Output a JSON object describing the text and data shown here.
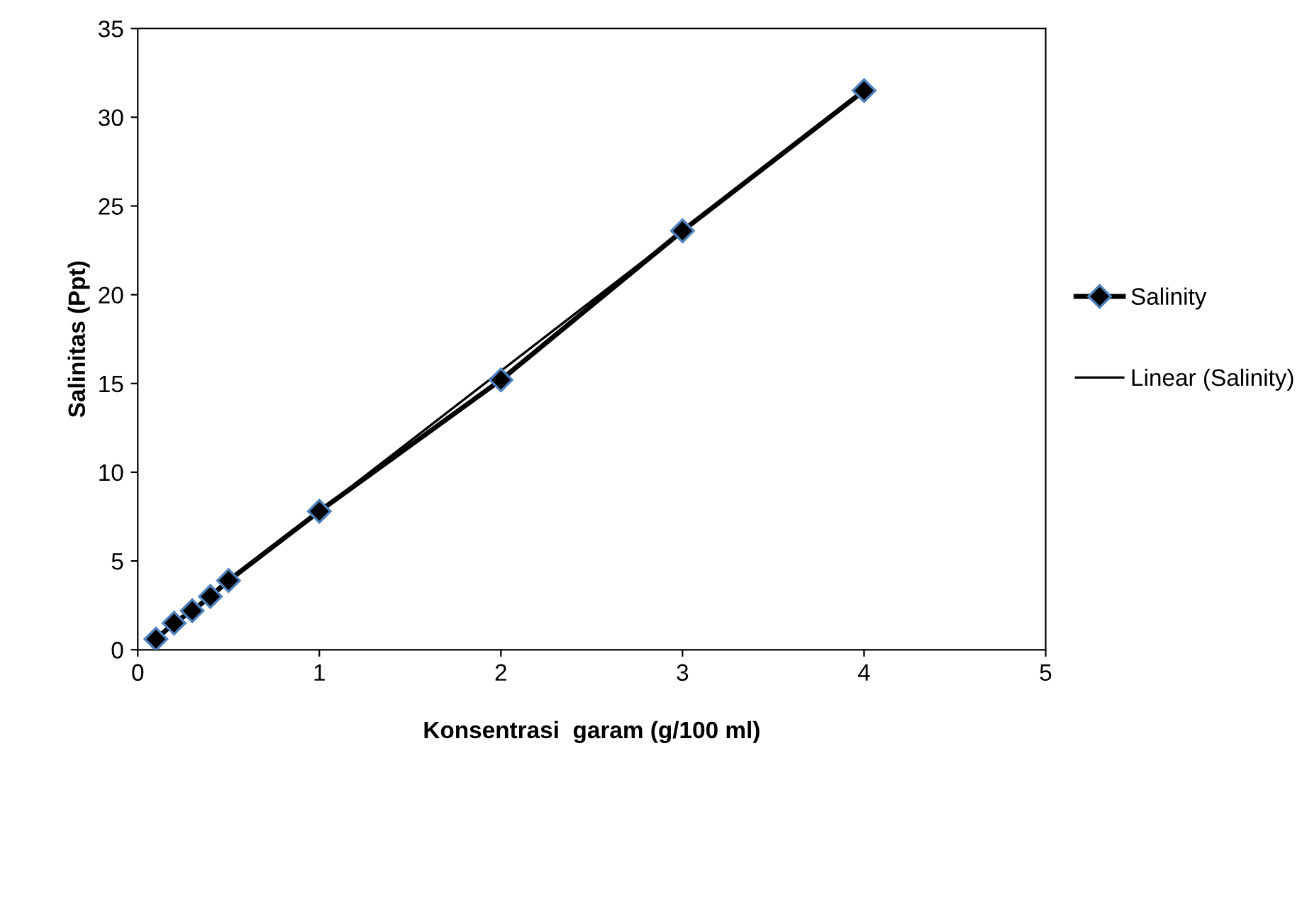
{
  "chart_data": {
    "type": "line",
    "xlabel": "Konsentrasi  garam (g/100 ml)",
    "ylabel": "Salinitas (Ppt)",
    "xlim": [
      0,
      5
    ],
    "xticks": [
      0,
      1,
      2,
      3,
      4,
      5
    ],
    "ylim": [
      0,
      35
    ],
    "yticks": [
      0,
      5,
      10,
      15,
      20,
      25,
      30,
      35
    ],
    "grid": false,
    "legend": "right",
    "marker": "diamond",
    "line_style": "solid",
    "series": [
      {
        "name": "Salinity",
        "color": "#000000",
        "x": [
          0.1,
          0.2,
          0.3,
          0.4,
          0.5,
          1,
          2,
          3,
          4
        ],
        "values": [
          0.6,
          1.5,
          2.2,
          3.0,
          3.9,
          7.8,
          15.2,
          23.6,
          31.5
        ]
      },
      {
        "name": "Linear (Salinity)",
        "type": "line",
        "marker": "none",
        "color": "#000000",
        "x": [
          0.1,
          4
        ],
        "values": [
          0.7,
          31.5
        ]
      }
    ]
  }
}
